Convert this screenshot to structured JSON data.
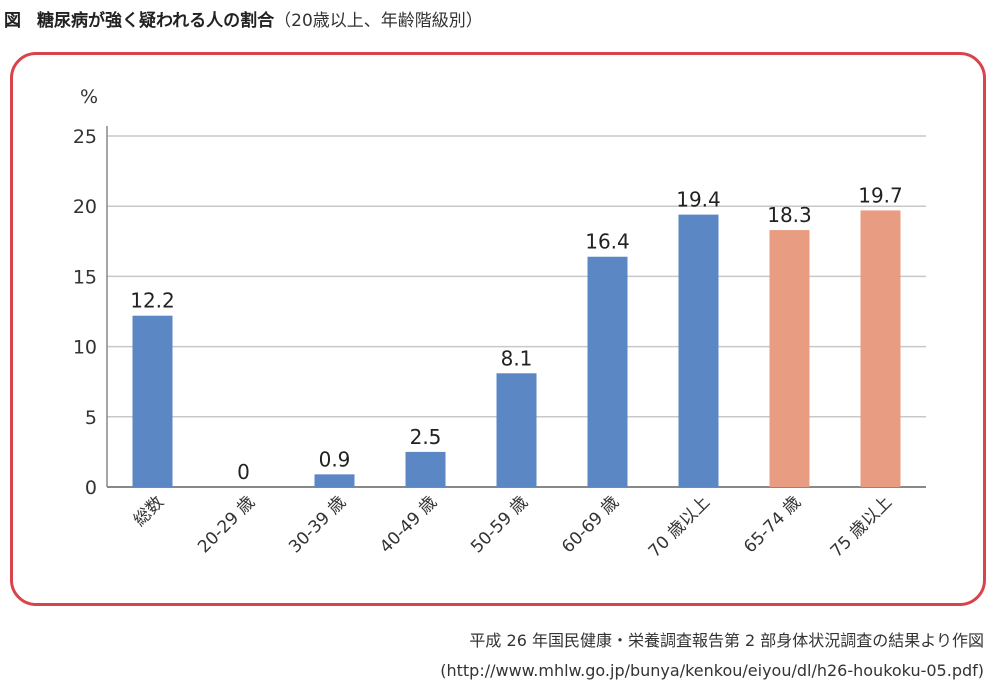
{
  "header": {
    "label": "図",
    "title": "糖尿病が強く疑われる人の割合",
    "subtitle": "（20歳以上、年齢階級別）"
  },
  "chart_data": {
    "type": "bar",
    "y_unit": "%",
    "ylim": [
      0,
      25
    ],
    "yticks": [
      0,
      5,
      10,
      15,
      20,
      25
    ],
    "grid": true,
    "categories": [
      "総数",
      "20-29 歳",
      "30-39 歳",
      "40-49 歳",
      "50-59 歳",
      "60-69 歳",
      "70 歳以上",
      "65-74 歳",
      "75 歳以上"
    ],
    "values": [
      12.2,
      0,
      0.9,
      2.5,
      8.1,
      16.4,
      19.4,
      18.3,
      19.7
    ],
    "value_labels": [
      "12.2",
      "0",
      "0.9",
      "2.5",
      "8.1",
      "16.4",
      "19.4",
      "18.3",
      "19.7"
    ],
    "bar_colors": [
      "#5b87c5",
      "#5b87c5",
      "#5b87c5",
      "#5b87c5",
      "#5b87c5",
      "#5b87c5",
      "#5b87c5",
      "#e89d82",
      "#e89d82"
    ],
    "grid_color": "#c8c8c8",
    "axis_color": "#888888"
  },
  "source": {
    "line1": "平成 26 年国民健康・栄養調査報告第 2 部身体状況調査の結果より作図",
    "line2": "(http://www.mhlw.go.jp/bunya/kenkou/eiyou/dl/h26-houkoku-05.pdf)"
  }
}
